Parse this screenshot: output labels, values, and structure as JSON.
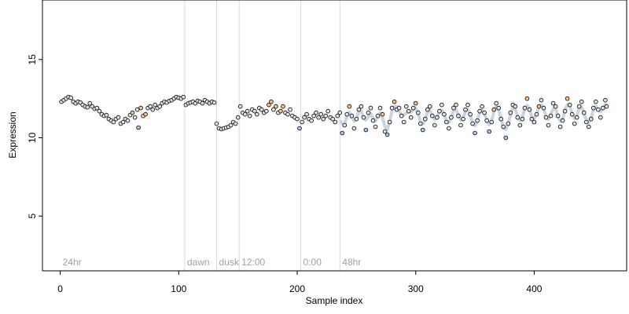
{
  "chart_data": {
    "type": "scatter",
    "title": "",
    "xlabel": "Sample index",
    "ylabel": "Expression",
    "xlim": [
      -15,
      478
    ],
    "ylim": [
      1.5,
      18.8
    ],
    "x_ticks": [
      0,
      100,
      200,
      300,
      400
    ],
    "y_ticks": [
      5,
      10,
      15
    ],
    "grid": false,
    "phase_markers": [
      {
        "label": "24hr",
        "x": 0,
        "line": false
      },
      {
        "label": "dawn",
        "x": 105,
        "line": true
      },
      {
        "label": "dusk",
        "x": 132,
        "line": true
      },
      {
        "label": "12:00",
        "x": 151,
        "line": true
      },
      {
        "label": "0:00",
        "x": 203,
        "line": true
      },
      {
        "label": "48hr",
        "x": 236,
        "line": true
      }
    ],
    "point_colors": {
      "default": "#e0e0e0",
      "orange": "#f5c087",
      "blue": "#a9c6ee",
      "outline": "#000000"
    },
    "trend_color": "#9bb0c8",
    "series": [
      {
        "points": [
          [
            1,
            12.3
          ],
          [
            3,
            12.4
          ],
          [
            5,
            12.5
          ],
          [
            7,
            12.6
          ],
          [
            9,
            12.55
          ],
          [
            11,
            12.3
          ],
          [
            13,
            12.2
          ],
          [
            15,
            12.3
          ],
          [
            17,
            12.25
          ],
          [
            19,
            12.1
          ],
          [
            21,
            12.0
          ],
          [
            23,
            11.95
          ],
          [
            25,
            12.2
          ],
          [
            27,
            12.0
          ],
          [
            29,
            11.85
          ],
          [
            31,
            11.9
          ],
          [
            33,
            11.7
          ],
          [
            35,
            11.5
          ],
          [
            37,
            11.4
          ],
          [
            39,
            11.45
          ],
          [
            41,
            11.2
          ],
          [
            43,
            11.1
          ],
          [
            45,
            11.0
          ],
          [
            47,
            11.2
          ],
          [
            49,
            11.3
          ],
          [
            51,
            10.9
          ],
          [
            53,
            11.0
          ],
          [
            55,
            11.2
          ],
          [
            57,
            11.1
          ],
          [
            59,
            11.45
          ],
          [
            61,
            11.6
          ],
          [
            63,
            11.3
          ],
          [
            65,
            11.8
          ],
          [
            66,
            10.65
          ],
          [
            68,
            11.9
          ],
          [
            70,
            11.4
          ],
          [
            72,
            11.5
          ],
          [
            74,
            11.9
          ],
          [
            76,
            12.0
          ],
          [
            78,
            11.8
          ],
          [
            80,
            12.1
          ],
          [
            82,
            11.9
          ],
          [
            84,
            12.0
          ],
          [
            86,
            12.2
          ],
          [
            88,
            12.3
          ],
          [
            90,
            12.25
          ],
          [
            92,
            12.35
          ],
          [
            94,
            12.4
          ],
          [
            96,
            12.5
          ],
          [
            98,
            12.6
          ],
          [
            100,
            12.55
          ],
          [
            102,
            12.5
          ],
          [
            104,
            12.6
          ],
          [
            106,
            12.1
          ],
          [
            108,
            12.2
          ],
          [
            110,
            12.25
          ],
          [
            112,
            12.3
          ],
          [
            114,
            12.2
          ],
          [
            116,
            12.35
          ],
          [
            118,
            12.3
          ],
          [
            120,
            12.2
          ],
          [
            122,
            12.4
          ],
          [
            124,
            12.3
          ],
          [
            126,
            12.2
          ],
          [
            128,
            12.3
          ],
          [
            130,
            12.25
          ],
          [
            132,
            10.9
          ],
          [
            134,
            10.6
          ],
          [
            136,
            10.55
          ],
          [
            138,
            10.6
          ],
          [
            140,
            10.65
          ],
          [
            142,
            10.7
          ],
          [
            144,
            10.8
          ],
          [
            146,
            11.0
          ],
          [
            148,
            10.9
          ],
          [
            150,
            11.3
          ],
          [
            152,
            12.0
          ],
          [
            154,
            11.6
          ],
          [
            156,
            11.5
          ],
          [
            158,
            11.7
          ],
          [
            160,
            11.4
          ],
          [
            162,
            11.8
          ],
          [
            164,
            11.7
          ],
          [
            166,
            11.5
          ],
          [
            168,
            11.9
          ],
          [
            170,
            11.8
          ],
          [
            172,
            11.6
          ],
          [
            174,
            11.7
          ],
          [
            176,
            12.1
          ],
          [
            178,
            12.3
          ],
          [
            180,
            11.8
          ],
          [
            182,
            12.0
          ],
          [
            184,
            11.6
          ],
          [
            186,
            11.7
          ],
          [
            188,
            12.0
          ],
          [
            190,
            11.6
          ],
          [
            192,
            11.5
          ],
          [
            194,
            11.8
          ],
          [
            196,
            11.4
          ],
          [
            198,
            11.3
          ],
          [
            200,
            11.2
          ],
          [
            202,
            10.6
          ],
          [
            204,
            11.0
          ],
          [
            206,
            11.3
          ],
          [
            208,
            11.5
          ],
          [
            210,
            11.2
          ],
          [
            212,
            11.1
          ],
          [
            214,
            11.4
          ],
          [
            216,
            11.6
          ],
          [
            218,
            11.3
          ],
          [
            220,
            11.5
          ],
          [
            222,
            11.2
          ],
          [
            224,
            11.4
          ],
          [
            226,
            11.7
          ],
          [
            228,
            11.3
          ],
          [
            230,
            11.2
          ],
          [
            232,
            11.0
          ],
          [
            234,
            11.4
          ],
          [
            236,
            11.6
          ],
          [
            238,
            10.3
          ],
          [
            240,
            10.8
          ],
          [
            242,
            11.5
          ],
          [
            244,
            12.0
          ],
          [
            246,
            11.4
          ],
          [
            248,
            10.6
          ],
          [
            250,
            11.2
          ],
          [
            252,
            11.8
          ],
          [
            254,
            12.0
          ],
          [
            256,
            11.3
          ],
          [
            258,
            10.5
          ],
          [
            260,
            11.6
          ],
          [
            262,
            11.9
          ],
          [
            264,
            11.1
          ],
          [
            266,
            10.7
          ],
          [
            268,
            11.4
          ],
          [
            270,
            11.9
          ],
          [
            272,
            11.5
          ],
          [
            274,
            10.4
          ],
          [
            276,
            10.2
          ],
          [
            278,
            11.0
          ],
          [
            280,
            11.9
          ],
          [
            282,
            12.3
          ],
          [
            284,
            11.8
          ],
          [
            286,
            11.9
          ],
          [
            288,
            11.4
          ],
          [
            290,
            11.0
          ],
          [
            292,
            12.0
          ],
          [
            294,
            11.7
          ],
          [
            296,
            11.3
          ],
          [
            298,
            11.9
          ],
          [
            300,
            12.2
          ],
          [
            302,
            11.6
          ],
          [
            304,
            10.9
          ],
          [
            306,
            10.5
          ],
          [
            308,
            11.2
          ],
          [
            310,
            11.8
          ],
          [
            312,
            12.0
          ],
          [
            314,
            11.4
          ],
          [
            316,
            10.8
          ],
          [
            318,
            11.3
          ],
          [
            320,
            11.7
          ],
          [
            322,
            12.1
          ],
          [
            324,
            11.5
          ],
          [
            326,
            11.0
          ],
          [
            328,
            10.6
          ],
          [
            330,
            11.3
          ],
          [
            332,
            11.9
          ],
          [
            334,
            12.1
          ],
          [
            336,
            11.4
          ],
          [
            338,
            10.8
          ],
          [
            340,
            11.2
          ],
          [
            342,
            11.8
          ],
          [
            344,
            12.1
          ],
          [
            346,
            11.5
          ],
          [
            348,
            10.9
          ],
          [
            350,
            10.3
          ],
          [
            352,
            11.1
          ],
          [
            354,
            11.7
          ],
          [
            356,
            12.0
          ],
          [
            358,
            11.6
          ],
          [
            360,
            11.1
          ],
          [
            362,
            10.4
          ],
          [
            364,
            11.0
          ],
          [
            366,
            11.8
          ],
          [
            368,
            12.2
          ],
          [
            370,
            11.9
          ],
          [
            372,
            11.2
          ],
          [
            374,
            10.7
          ],
          [
            376,
            10.0
          ],
          [
            378,
            10.9
          ],
          [
            380,
            11.6
          ],
          [
            382,
            12.1
          ],
          [
            384,
            12.0
          ],
          [
            386,
            11.3
          ],
          [
            388,
            10.8
          ],
          [
            390,
            11.2
          ],
          [
            392,
            11.9
          ],
          [
            394,
            12.5
          ],
          [
            396,
            11.8
          ],
          [
            398,
            11.2
          ],
          [
            400,
            11.0
          ],
          [
            402,
            11.5
          ],
          [
            404,
            12.0
          ],
          [
            406,
            12.4
          ],
          [
            408,
            11.9
          ],
          [
            410,
            11.3
          ],
          [
            412,
            10.8
          ],
          [
            414,
            11.4
          ],
          [
            416,
            12.2
          ],
          [
            418,
            12.0
          ],
          [
            420,
            11.4
          ],
          [
            422,
            10.7
          ],
          [
            424,
            11.1
          ],
          [
            426,
            11.7
          ],
          [
            428,
            12.5
          ],
          [
            430,
            12.1
          ],
          [
            432,
            11.5
          ],
          [
            434,
            10.9
          ],
          [
            436,
            11.3
          ],
          [
            438,
            12.0
          ],
          [
            440,
            12.3
          ],
          [
            442,
            11.6
          ],
          [
            444,
            11.0
          ],
          [
            446,
            10.7
          ],
          [
            448,
            11.2
          ],
          [
            450,
            11.9
          ],
          [
            452,
            12.3
          ],
          [
            454,
            11.8
          ],
          [
            456,
            11.3
          ],
          [
            458,
            11.9
          ],
          [
            460,
            12.4
          ],
          [
            461,
            12.0
          ]
        ]
      }
    ],
    "orange_points": [
      61,
      68,
      72,
      151,
      176,
      178,
      182,
      186,
      188,
      244,
      272,
      282,
      300,
      366,
      394,
      404,
      428
    ],
    "blue_points": [
      66,
      202,
      238,
      258,
      276,
      306,
      350,
      362,
      376
    ]
  }
}
